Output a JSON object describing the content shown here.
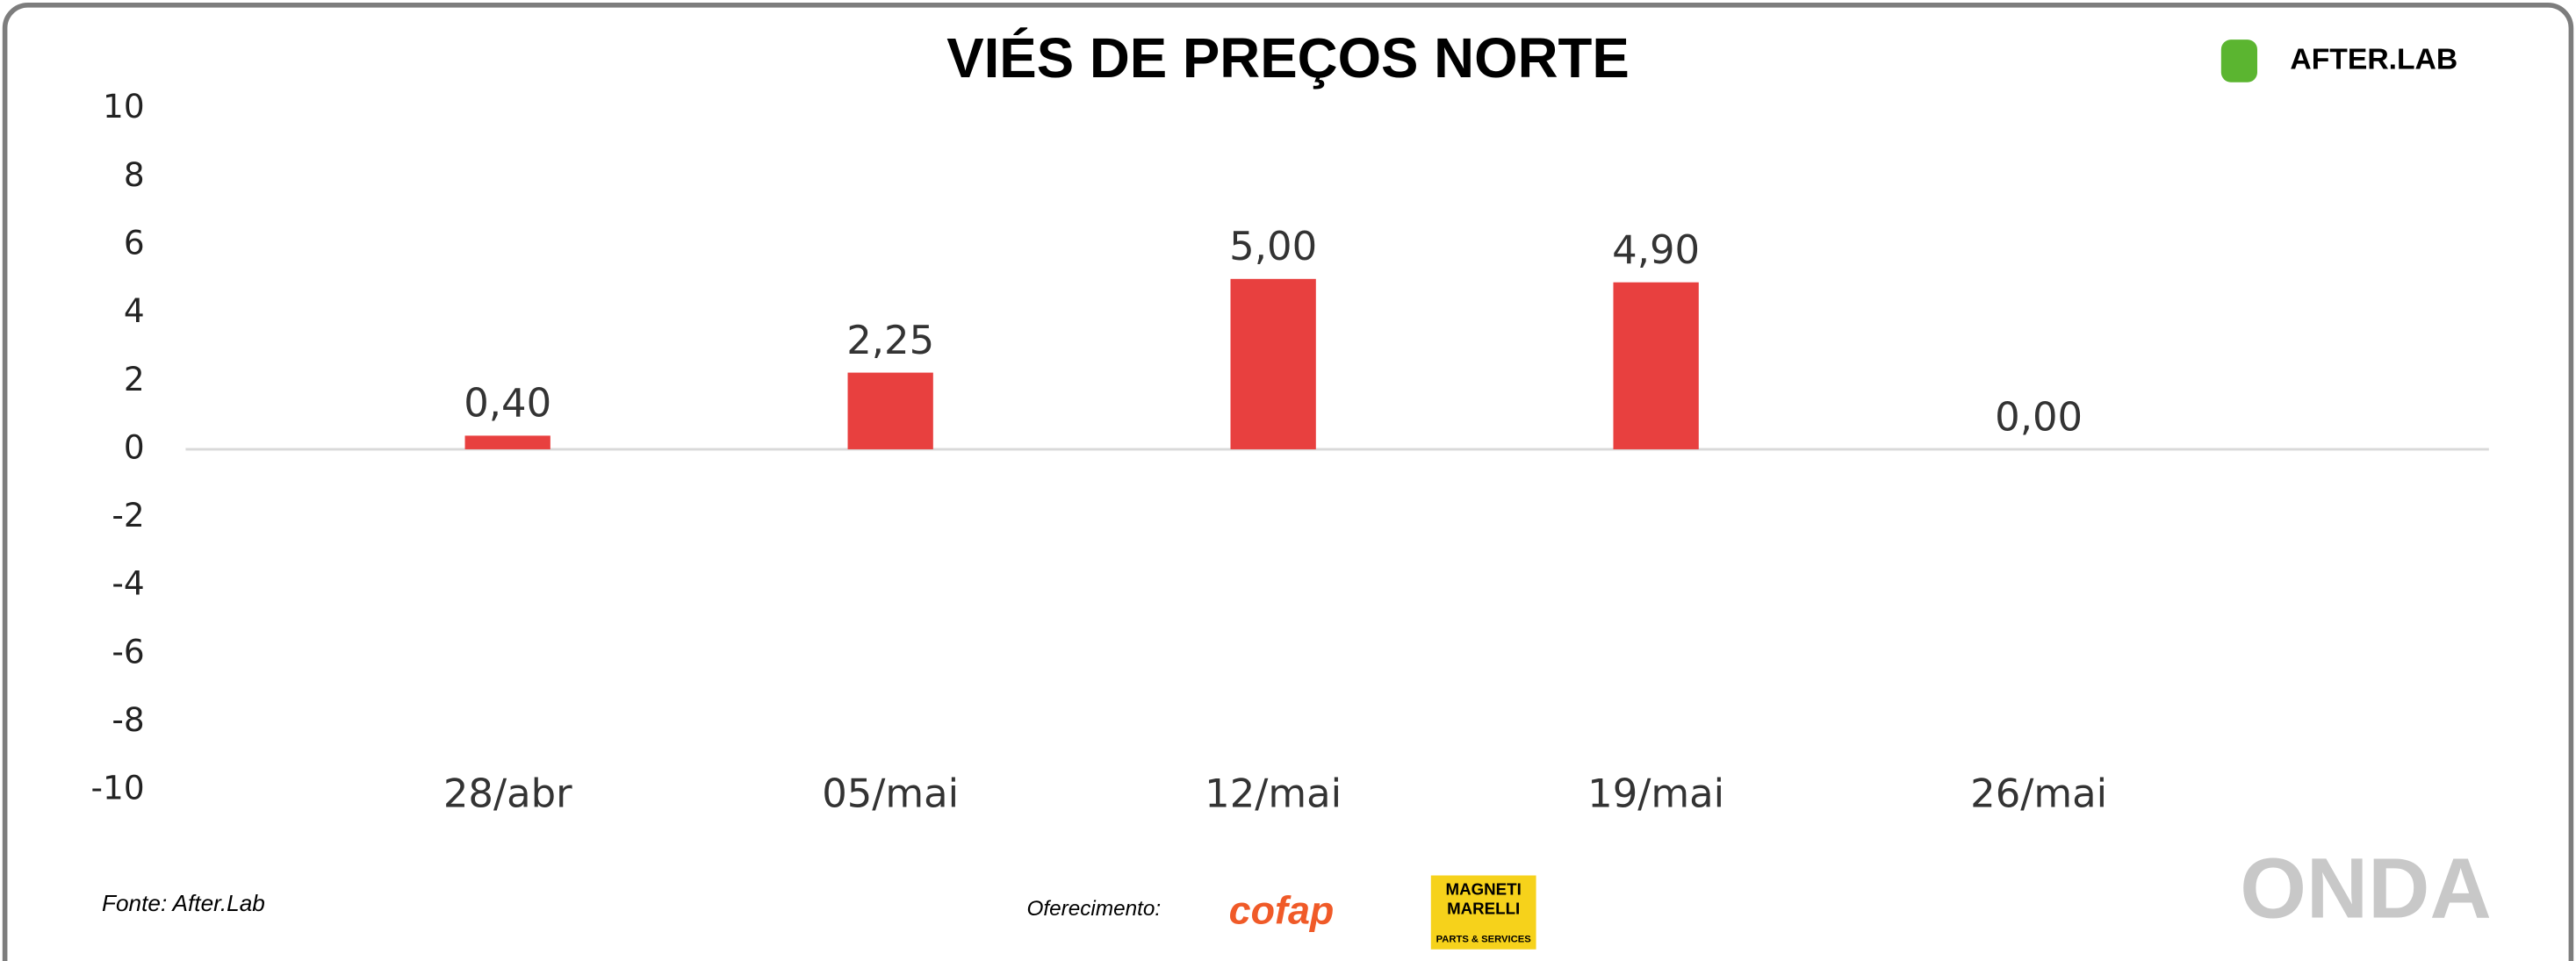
{
  "chart_data": {
    "type": "bar",
    "title": "VIÉS DE PREÇOS NORTE",
    "categories": [
      "28/abr",
      "05/mai",
      "12/mai",
      "19/mai",
      "26/mai"
    ],
    "values": [
      0.4,
      2.25,
      5.0,
      4.9,
      0
    ],
    "value_labels": [
      "0,40",
      "2,25",
      "5,00",
      "4,90",
      "0,00"
    ],
    "color": "#e8403f",
    "ylim": [
      -10,
      10
    ],
    "yticks": [
      -10,
      -8,
      -6,
      -4,
      -2,
      0,
      2,
      4,
      6,
      8,
      10
    ],
    "source": "Fonte: After.Lab",
    "sponsor_label": "Oferecimento:",
    "logos": {
      "brand": "AFTER.LAB",
      "cofap": "cofap",
      "magneti_1": "MAGNETI",
      "magneti_2": "MARELLI",
      "magneti_3": "PARTS & SERVICES",
      "onda": "ONDA"
    }
  }
}
